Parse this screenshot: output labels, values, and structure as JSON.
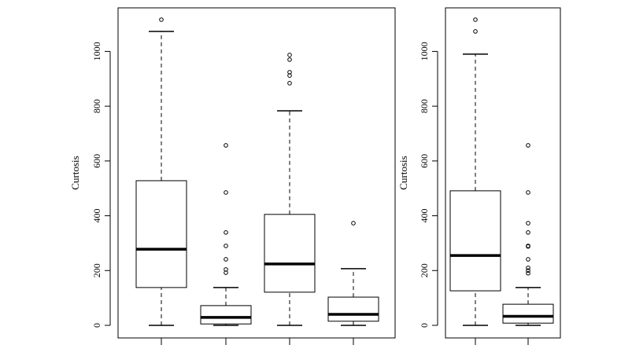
{
  "chart_data": [
    {
      "type": "boxplot",
      "y_label": "Curtosis",
      "ylim": [
        -46,
        1159
      ],
      "yticks": [
        0,
        200,
        400,
        600,
        800,
        1000
      ],
      "categories": [
        null,
        null,
        null,
        null
      ],
      "boxes": [
        {
          "min": 0,
          "q1": 138,
          "median": 278,
          "q3": 528,
          "max": 1073,
          "outliers": [
            1116
          ]
        },
        {
          "min": 0,
          "q1": 5,
          "median": 29,
          "q3": 72,
          "max": 138,
          "outliers": [
            657,
            485,
            339,
            290,
            241,
            204,
            192
          ]
        },
        {
          "min": 0,
          "q1": 121,
          "median": 224,
          "q3": 405,
          "max": 783,
          "outliers": [
            987,
            970,
            924,
            912,
            884
          ]
        },
        {
          "min": 0,
          "q1": 15,
          "median": 40,
          "q3": 103,
          "max": 207,
          "outliers": [
            373
          ]
        }
      ]
    },
    {
      "type": "boxplot",
      "y_label": "Curtosis",
      "ylim": [
        -46,
        1159
      ],
      "yticks": [
        0,
        200,
        400,
        600,
        800,
        1000
      ],
      "categories": [
        null,
        null
      ],
      "boxes": [
        {
          "min": 0,
          "q1": 126,
          "median": 255,
          "q3": 491,
          "max": 990,
          "outliers": [
            1073,
            1116
          ]
        },
        {
          "min": 0,
          "q1": 8,
          "median": 33,
          "q3": 77,
          "max": 138,
          "outliers": [
            657,
            485,
            373,
            339,
            290,
            288,
            241,
            210,
            200,
            190
          ]
        }
      ]
    }
  ]
}
